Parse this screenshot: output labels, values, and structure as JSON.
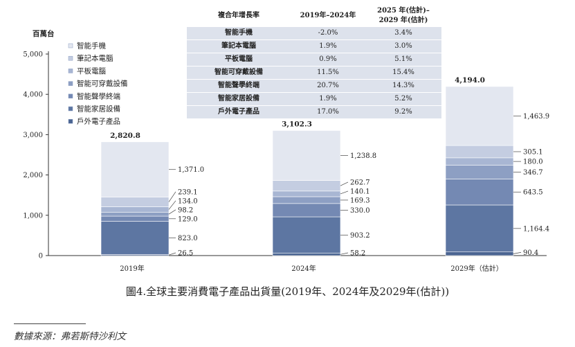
{
  "chart_data": {
    "type": "bar",
    "stacked": true,
    "unit_label": "百萬台",
    "categories": [
      "2019年",
      "2024年",
      "2029年（估計）"
    ],
    "totals": [
      "2,820.8",
      "3,102.3",
      "4,194.0"
    ],
    "ylim": [
      0,
      5000
    ],
    "yticks": [
      {
        "value": 0,
        "label": "0"
      },
      {
        "value": 1000,
        "label": "1,000"
      },
      {
        "value": 2000,
        "label": "2,000"
      },
      {
        "value": 3000,
        "label": "3,000"
      },
      {
        "value": 4000,
        "label": "4,000"
      },
      {
        "value": 5000,
        "label": "5,000"
      }
    ],
    "legend_position": "top-left",
    "series": [
      {
        "name": "戶外電子產品",
        "color": "#4a6491",
        "values": [
          26.5,
          58.2,
          90.4
        ],
        "labels": [
          "26.5",
          "58.2",
          "90.4"
        ]
      },
      {
        "name": "智能家居設備",
        "color": "#5d76a2",
        "values": [
          823.0,
          903.2,
          1164.4
        ],
        "labels": [
          "823.0",
          "903.2",
          "1,164.4"
        ]
      },
      {
        "name": "智能聲學終端",
        "color": "#7489b3",
        "values": [
          129.0,
          330.0,
          643.5
        ],
        "labels": [
          "129.0",
          "330.0",
          "643.5"
        ]
      },
      {
        "name": "智能可穿戴設備",
        "color": "#8d9fc3",
        "values": [
          98.2,
          169.3,
          346.7
        ],
        "labels": [
          "98.2",
          "169.3",
          "346.7"
        ]
      },
      {
        "name": "平板電腦",
        "color": "#a8b6d3",
        "values": [
          134.0,
          140.1,
          180.0
        ],
        "labels": [
          "134.0",
          "140.1",
          "180.0"
        ]
      },
      {
        "name": "筆記本電腦",
        "color": "#c4cde1",
        "values": [
          239.1,
          262.7,
          305.1
        ],
        "labels": [
          "239.1",
          "262.7",
          "305.1"
        ]
      },
      {
        "name": "智能手機",
        "color": "#e3e7f0",
        "values": [
          1371.0,
          1238.8,
          1463.9
        ],
        "labels": [
          "1,371.0",
          "1,238.8",
          "1,463.9"
        ]
      }
    ]
  },
  "cagr_table": {
    "header": {
      "col1": "複合年增長率",
      "col2": "2019年–2024年",
      "col3_line1": "2025 年(估計)–",
      "col3_line2": "2029 年(估計)"
    },
    "rows": [
      {
        "category": "智能手機",
        "cagr_2019_2024": "-2.0%",
        "cagr_2025_2029": "3.4%"
      },
      {
        "category": "筆記本電腦",
        "cagr_2019_2024": "1.9%",
        "cagr_2025_2029": "3.0%"
      },
      {
        "category": "平板電腦",
        "cagr_2019_2024": "0.9%",
        "cagr_2025_2029": "5.1%"
      },
      {
        "category": "智能可穿戴設備",
        "cagr_2019_2024": "11.5%",
        "cagr_2025_2029": "15.4%"
      },
      {
        "category": "智能聲學終端",
        "cagr_2019_2024": "20.7%",
        "cagr_2025_2029": "14.3%"
      },
      {
        "category": "智能家居設備",
        "cagr_2019_2024": "1.9%",
        "cagr_2025_2029": "5.2%"
      },
      {
        "category": "戶外電子產品",
        "cagr_2019_2024": "17.0%",
        "cagr_2025_2029": "9.2%"
      }
    ]
  },
  "caption": "圖4.全球主要消費電子產品出貨量(2019年、2024年及2029年(估計))",
  "source": "數據來源：弗若斯特沙利文"
}
